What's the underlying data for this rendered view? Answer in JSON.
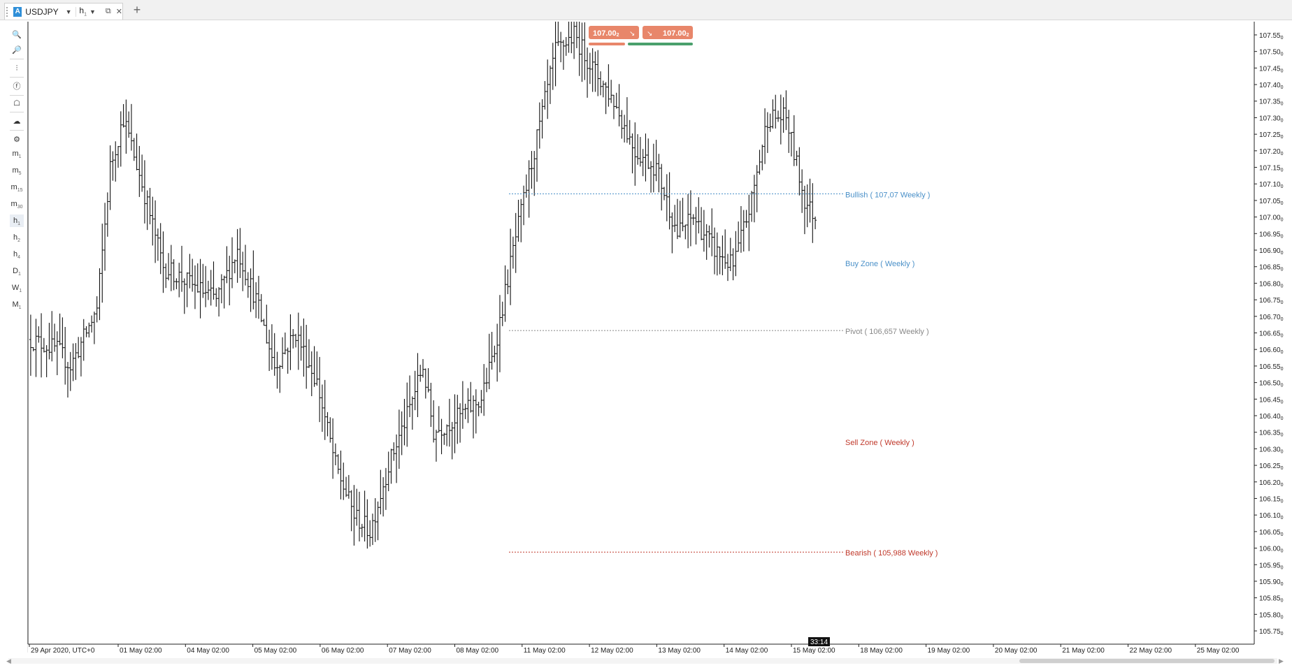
{
  "tab": {
    "badge": "A",
    "symbol": "USDJPY",
    "timeframe": "h",
    "timeframe_sub": "1",
    "close": "✕",
    "plus": "+"
  },
  "toolbar": {
    "tools": [
      "zoom-in-icon",
      "zoom-out-icon",
      "indicators-icon",
      "facebook-icon",
      "robot-icon",
      "chart-style-icon",
      "settings-icon"
    ],
    "timeframes": [
      {
        "label": "m",
        "sub": "1"
      },
      {
        "label": "m",
        "sub": "5"
      },
      {
        "label": "m",
        "sub": "15"
      },
      {
        "label": "m",
        "sub": "30"
      },
      {
        "label": "h",
        "sub": "1"
      },
      {
        "label": "h",
        "sub": "2"
      },
      {
        "label": "h",
        "sub": "4"
      },
      {
        "label": "D",
        "sub": "1"
      },
      {
        "label": "W",
        "sub": "1"
      },
      {
        "label": "M",
        "sub": "1"
      }
    ],
    "active_timeframe": "h1"
  },
  "trade_panel": {
    "sell_price": "107.00",
    "sell_price_sup": "2",
    "buy_price": "107.00",
    "buy_price_sup": "2",
    "sell_color": "#e8866a",
    "buy_color": "#4aa06c"
  },
  "countdown": "33:14",
  "chart_data": {
    "type": "ohlc-bar",
    "symbol": "USDJPY",
    "timeframe": "h1",
    "ylim": [
      105.71,
      107.59
    ],
    "yticks": [
      "107.55",
      "107.50",
      "107.45",
      "107.40",
      "107.35",
      "107.30",
      "107.25",
      "107.20",
      "107.15",
      "107.10",
      "107.05",
      "107.00",
      "106.95",
      "106.90",
      "106.85",
      "106.80",
      "106.75",
      "106.70",
      "106.65",
      "106.60",
      "106.55",
      "106.50",
      "106.45",
      "106.40",
      "106.35",
      "106.30",
      "106.25",
      "106.20",
      "106.15",
      "106.10",
      "106.05",
      "106.00",
      "105.95",
      "105.90",
      "105.85",
      "105.80",
      "105.75"
    ],
    "ytick_sup": "0",
    "xticks": [
      "29 Apr 2020, UTC+0",
      "01 May 02:00",
      "04 May 02:00",
      "05 May 02:00",
      "06 May 02:00",
      "07 May 02:00",
      "08 May 02:00",
      "11 May 02:00",
      "12 May 02:00",
      "13 May 02:00",
      "14 May 02:00",
      "15 May 02:00",
      "18 May 02:00",
      "19 May 02:00",
      "20 May 02:00",
      "21 May 02:00",
      "22 May 02:00",
      "25 May 02:00"
    ],
    "levels": [
      {
        "label": "Bullish ( 107,07 Weekly )",
        "value": 107.07,
        "color": "#4a90c8",
        "line": true
      },
      {
        "label": "Buy Zone ( Weekly )",
        "value": 106.862,
        "color": "#4a90c8",
        "line": false
      },
      {
        "label": "Pivot ( 106,657 Weekly )",
        "value": 106.657,
        "color": "#888888",
        "line": true
      },
      {
        "label": "Sell Zone ( Weekly )",
        "value": 106.322,
        "color": "#c0392b",
        "line": false
      },
      {
        "label": "Bearish ( 105,988 Weekly )",
        "value": 105.988,
        "color": "#c0392b",
        "line": true
      }
    ],
    "price_path": [
      {
        "bar": 0,
        "price": 106.63
      },
      {
        "bar": 10,
        "price": 106.6
      },
      {
        "bar": 15,
        "price": 106.55
      },
      {
        "bar": 25,
        "price": 106.72
      },
      {
        "bar": 30,
        "price": 107.15
      },
      {
        "bar": 35,
        "price": 107.3
      },
      {
        "bar": 42,
        "price": 107.1
      },
      {
        "bar": 50,
        "price": 106.85
      },
      {
        "bar": 60,
        "price": 106.8
      },
      {
        "bar": 70,
        "price": 106.75
      },
      {
        "bar": 78,
        "price": 106.9
      },
      {
        "bar": 85,
        "price": 106.75
      },
      {
        "bar": 92,
        "price": 106.55
      },
      {
        "bar": 100,
        "price": 106.65
      },
      {
        "bar": 108,
        "price": 106.5
      },
      {
        "bar": 115,
        "price": 106.25
      },
      {
        "bar": 122,
        "price": 106.1
      },
      {
        "bar": 128,
        "price": 106.05
      },
      {
        "bar": 135,
        "price": 106.25
      },
      {
        "bar": 142,
        "price": 106.4
      },
      {
        "bar": 148,
        "price": 106.55
      },
      {
        "bar": 152,
        "price": 106.35
      },
      {
        "bar": 162,
        "price": 106.4
      },
      {
        "bar": 170,
        "price": 106.45
      },
      {
        "bar": 175,
        "price": 106.6
      },
      {
        "bar": 182,
        "price": 106.9
      },
      {
        "bar": 190,
        "price": 107.2
      },
      {
        "bar": 198,
        "price": 107.5
      },
      {
        "bar": 205,
        "price": 107.55
      },
      {
        "bar": 212,
        "price": 107.45
      },
      {
        "bar": 220,
        "price": 107.35
      },
      {
        "bar": 228,
        "price": 107.2
      },
      {
        "bar": 236,
        "price": 107.15
      },
      {
        "bar": 244,
        "price": 106.95
      },
      {
        "bar": 250,
        "price": 107.0
      },
      {
        "bar": 258,
        "price": 106.9
      },
      {
        "bar": 265,
        "price": 106.85
      },
      {
        "bar": 272,
        "price": 107.05
      },
      {
        "bar": 278,
        "price": 107.3
      },
      {
        "bar": 285,
        "price": 107.3
      },
      {
        "bar": 292,
        "price": 107.05
      },
      {
        "bar": 296,
        "price": 107.0
      }
    ]
  }
}
